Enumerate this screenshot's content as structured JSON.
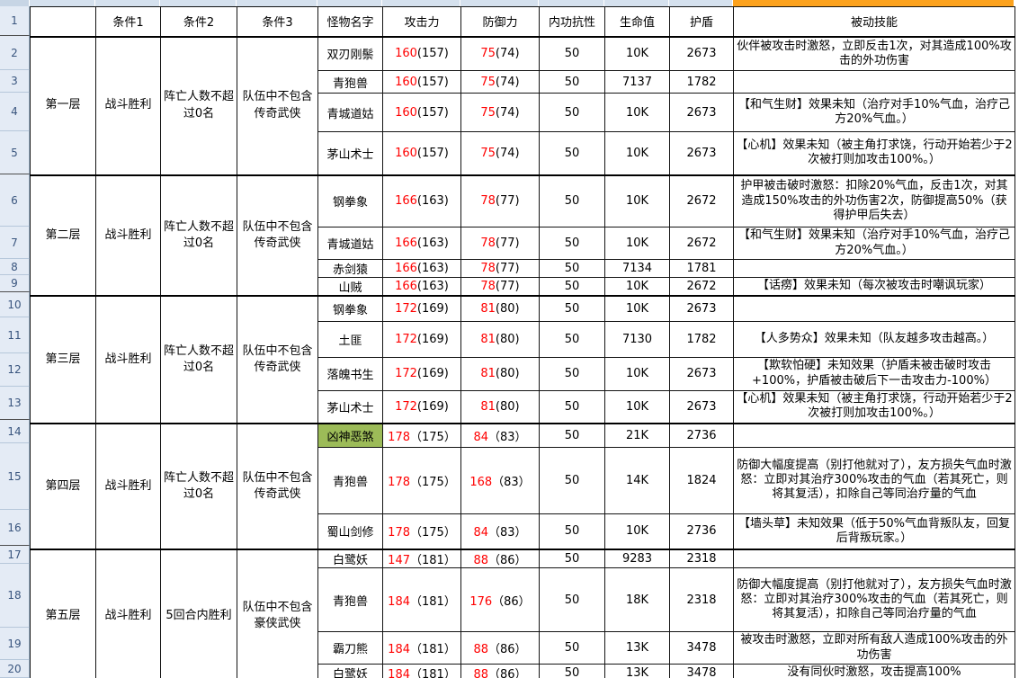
{
  "sheet": {
    "columns": [
      "",
      "条件1",
      "条件2",
      "条件3",
      "怪物名字",
      "攻击力",
      "防御力",
      "内功抗性",
      "生命值",
      "护盾",
      "被动技能"
    ],
    "row_numbers": [
      "1",
      "2",
      "3",
      "4",
      "5",
      "6",
      "7",
      "8",
      "9",
      "10",
      "11",
      "12",
      "13",
      "14",
      "15",
      "16",
      "17",
      "18",
      "19",
      "20"
    ]
  },
  "colors": {
    "stat_highlight_red": "#FF0000",
    "boss_cell_green": "#9CBB58",
    "selected_column_orange": "#FCA21D"
  },
  "floors": [
    {
      "floor": "第一层",
      "cond1": "战斗胜利",
      "cond2": "阵亡人数不超过0名",
      "cond3": "队伍中不包含传奇武侠",
      "monsters": [
        {
          "name": "双刃刚鬃",
          "atk": "160",
          "atk_p": "(157)",
          "def": "75",
          "def_p": "(74)",
          "resist": "50",
          "hp": "10K",
          "shield": "2673",
          "passive": "伙伴被攻击时激怒，立即反击1次，对其造成100%攻击的外功伤害",
          "highlight": false
        },
        {
          "name": "青狍兽",
          "atk": "160",
          "atk_p": "(157)",
          "def": "75",
          "def_p": "(74)",
          "resist": "50",
          "hp": "7137",
          "shield": "1782",
          "passive": "",
          "highlight": false
        },
        {
          "name": "青城道姑",
          "atk": "160",
          "atk_p": "(157)",
          "def": "75",
          "def_p": "(74)",
          "resist": "50",
          "hp": "10K",
          "shield": "2673",
          "passive": "【和气生财】效果未知（治疗对手10%气血，治疗己方20%气血。）",
          "highlight": false
        },
        {
          "name": "茅山术士",
          "atk": "160",
          "atk_p": "(157)",
          "def": "75",
          "def_p": "(74)",
          "resist": "50",
          "hp": "10K",
          "shield": "2673",
          "passive": "【心机】效果未知（被主角打求饶，行动开始若少于2次被打则加攻击100%。）",
          "highlight": false
        }
      ]
    },
    {
      "floor": "第二层",
      "cond1": "战斗胜利",
      "cond2": "阵亡人数不超过0名",
      "cond3": "队伍中不包含传奇武侠",
      "monsters": [
        {
          "name": "钢拳象",
          "atk": "166",
          "atk_p": "(163)",
          "def": "78",
          "def_p": "(77)",
          "resist": "50",
          "hp": "10K",
          "shield": "2672",
          "passive": "护甲被击破时激怒：扣除20%气血，反击1次，对其造成150%攻击的外功伤害2次，防御提高50%（获得护甲后失去）",
          "highlight": false
        },
        {
          "name": "青城道姑",
          "atk": "166",
          "atk_p": "(163)",
          "def": "78",
          "def_p": "(77)",
          "resist": "50",
          "hp": "10K",
          "shield": "2672",
          "passive": "【和气生财】效果未知（治疗对手10%气血，治疗己方20%气血。）",
          "highlight": false
        },
        {
          "name": "赤剑猿",
          "atk": "166",
          "atk_p": "(163)",
          "def": "78",
          "def_p": "(77)",
          "resist": "50",
          "hp": "7134",
          "shield": "1781",
          "passive": "",
          "highlight": false
        },
        {
          "name": "山贼",
          "atk": "166",
          "atk_p": "(163)",
          "def": "78",
          "def_p": "(77)",
          "resist": "50",
          "hp": "10K",
          "shield": "2672",
          "passive": "【话痨】效果未知（每次被攻击时嘲讽玩家）",
          "highlight": false
        }
      ]
    },
    {
      "floor": "第三层",
      "cond1": "战斗胜利",
      "cond2": "阵亡人数不超过0名",
      "cond3": "队伍中不包含传奇武侠",
      "monsters": [
        {
          "name": "钢拳象",
          "atk": "172",
          "atk_p": "(169)",
          "def": "81",
          "def_p": "(80)",
          "resist": "50",
          "hp": "10K",
          "shield": "2673",
          "passive": "",
          "highlight": false
        },
        {
          "name": "土匪",
          "atk": "172",
          "atk_p": "(169)",
          "def": "81",
          "def_p": "(80)",
          "resist": "50",
          "hp": "7130",
          "shield": "1782",
          "passive": "【人多势众】效果未知（队友越多攻击越高。）",
          "highlight": false
        },
        {
          "name": "落魄书生",
          "atk": "172",
          "atk_p": "(169)",
          "def": "81",
          "def_p": "(80)",
          "resist": "50",
          "hp": "10K",
          "shield": "2673",
          "passive": "【欺软怕硬】未知效果（护盾未被击破时攻击+100%，护盾被击破后下一击攻击力-100%）",
          "highlight": false
        },
        {
          "name": "茅山术士",
          "atk": "172",
          "atk_p": "(169)",
          "def": "81",
          "def_p": "(80)",
          "resist": "50",
          "hp": "10K",
          "shield": "2673",
          "passive": "【心机】效果未知（被主角打求饶，行动开始若少于2次被打则加攻击100%。）",
          "highlight": false
        }
      ]
    },
    {
      "floor": "第四层",
      "cond1": "战斗胜利",
      "cond2": "阵亡人数不超过0名",
      "cond3": "队伍中不包含传奇武侠",
      "monsters": [
        {
          "name": "凶神恶煞",
          "atk": "178",
          "atk_p": "（175）",
          "def": "84",
          "def_p": "（83）",
          "resist": "50",
          "hp": "21K",
          "shield": "2736",
          "passive": "",
          "highlight": true
        },
        {
          "name": "青狍兽",
          "atk": "178",
          "atk_p": "（175）",
          "def": "168",
          "def_p": "（83）",
          "resist": "50",
          "hp": "14K",
          "shield": "1824",
          "passive": "防御大幅度提高（别打他就对了），友方损失气血时激怒：立即对其治疗300%攻击的气血（若其死亡，则将其复活），扣除自己等同治疗量的气血",
          "highlight": false
        },
        {
          "name": "蜀山剑修",
          "atk": "178",
          "atk_p": "（175）",
          "def": "84",
          "def_p": "（83）",
          "resist": "50",
          "hp": "10K",
          "shield": "2736",
          "passive": "【墙头草】未知效果（低于50%气血背叛队友，回复后背叛玩家。）",
          "highlight": false
        }
      ]
    },
    {
      "floor": "第五层",
      "cond1": "战斗胜利",
      "cond2": "5回合内胜利",
      "cond3": "队伍中不包含豪侠武侠",
      "monsters": [
        {
          "name": "白鹭妖",
          "atk": "147",
          "atk_p": "（181）",
          "def": "88",
          "def_p": "（86）",
          "resist": "50",
          "hp": "9283",
          "shield": "2318",
          "passive": "",
          "highlight": false
        },
        {
          "name": "青狍兽",
          "atk": "184",
          "atk_p": "（181）",
          "def": "176",
          "def_p": "（86）",
          "resist": "50",
          "hp": "18K",
          "shield": "2318",
          "passive": "防御大幅度提高（别打他就对了），友方损失气血时激怒：立即对其治疗300%攻击的气血（若其死亡，则将其复活），扣除自己等同治疗量的气血",
          "highlight": false
        },
        {
          "name": "霸刀熊",
          "atk": "184",
          "atk_p": "（181）",
          "def": "88",
          "def_p": "（86）",
          "resist": "50",
          "hp": "13K",
          "shield": "3478",
          "passive": "被攻击时激怒，立即对所有敌人造成100%攻击的外功伤害",
          "highlight": false
        },
        {
          "name": "白鹭妖",
          "atk": "184",
          "atk_p": "（181）",
          "def": "88",
          "def_p": "（86）",
          "resist": "50",
          "hp": "13K",
          "shield": "3478",
          "passive": "没有同伙时激怒，攻击提高100%",
          "highlight": false
        }
      ]
    }
  ]
}
